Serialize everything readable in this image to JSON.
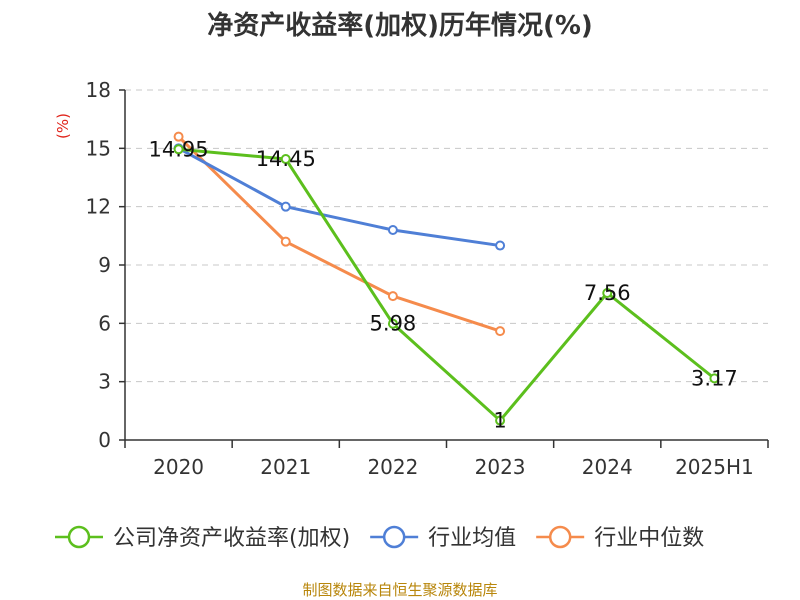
{
  "chart_data": {
    "type": "line",
    "title": "净资产收益率(加权)历年情况(%)",
    "ylabel": "(%)",
    "xlabel": "",
    "categories": [
      "2020",
      "2021",
      "2022",
      "2023",
      "2024",
      "2025H1"
    ],
    "ylim": [
      0,
      18
    ],
    "yticks": [
      0,
      3,
      6,
      9,
      12,
      15,
      18
    ],
    "grid": true,
    "legend_position": "bottom",
    "series": [
      {
        "name": "公司净资产收益率(加权)",
        "color": "#5cbf1d",
        "values": [
          14.95,
          14.45,
          5.98,
          1,
          7.56,
          3.17
        ],
        "labels": [
          "14.95",
          "14.45",
          "5.98",
          "1",
          "7.56",
          "3.17"
        ],
        "show_labels": true
      },
      {
        "name": "行业均值",
        "color": "#4f7fd6",
        "values": [
          15.0,
          12.0,
          10.8,
          10.0,
          null,
          null
        ],
        "show_labels": false
      },
      {
        "name": "行业中位数",
        "color": "#f58b4c",
        "values": [
          15.6,
          10.2,
          7.4,
          5.6,
          null,
          null
        ],
        "show_labels": false
      }
    ]
  },
  "source_text": "制图数据来自恒生聚源数据库"
}
